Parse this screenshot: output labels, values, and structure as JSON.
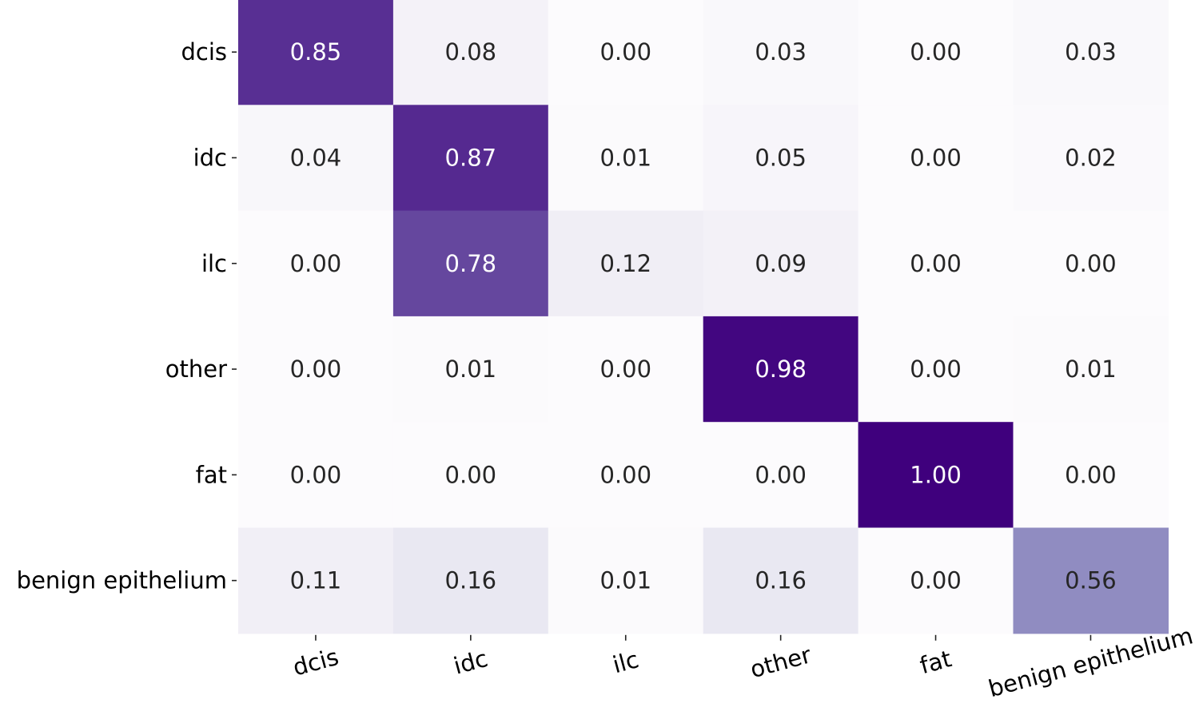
{
  "chart_data": {
    "type": "heatmap",
    "title": "",
    "xlabel": "",
    "ylabel": "",
    "rows": [
      "dcis",
      "idc",
      "ilc",
      "other",
      "fat",
      "benign epithelium"
    ],
    "columns": [
      "dcis",
      "idc",
      "ilc",
      "other",
      "fat",
      "benign epithelium"
    ],
    "values": [
      [
        0.85,
        0.08,
        0.0,
        0.03,
        0.0,
        0.03
      ],
      [
        0.04,
        0.87,
        0.01,
        0.05,
        0.0,
        0.02
      ],
      [
        0.0,
        0.78,
        0.12,
        0.09,
        0.0,
        0.0
      ],
      [
        0.0,
        0.01,
        0.0,
        0.98,
        0.0,
        0.01
      ],
      [
        0.0,
        0.0,
        0.0,
        0.0,
        1.0,
        0.0
      ],
      [
        0.11,
        0.16,
        0.01,
        0.16,
        0.0,
        0.56
      ]
    ],
    "value_format": "0.00",
    "colormap": "Purples",
    "vmin": 0,
    "vmax": 1,
    "colorbar": false,
    "grid": false,
    "x_tick_rotation_deg": -15,
    "colors": {
      "text_dark": "#262626",
      "text_light": "#ffffff",
      "tick": "#222222"
    }
  }
}
